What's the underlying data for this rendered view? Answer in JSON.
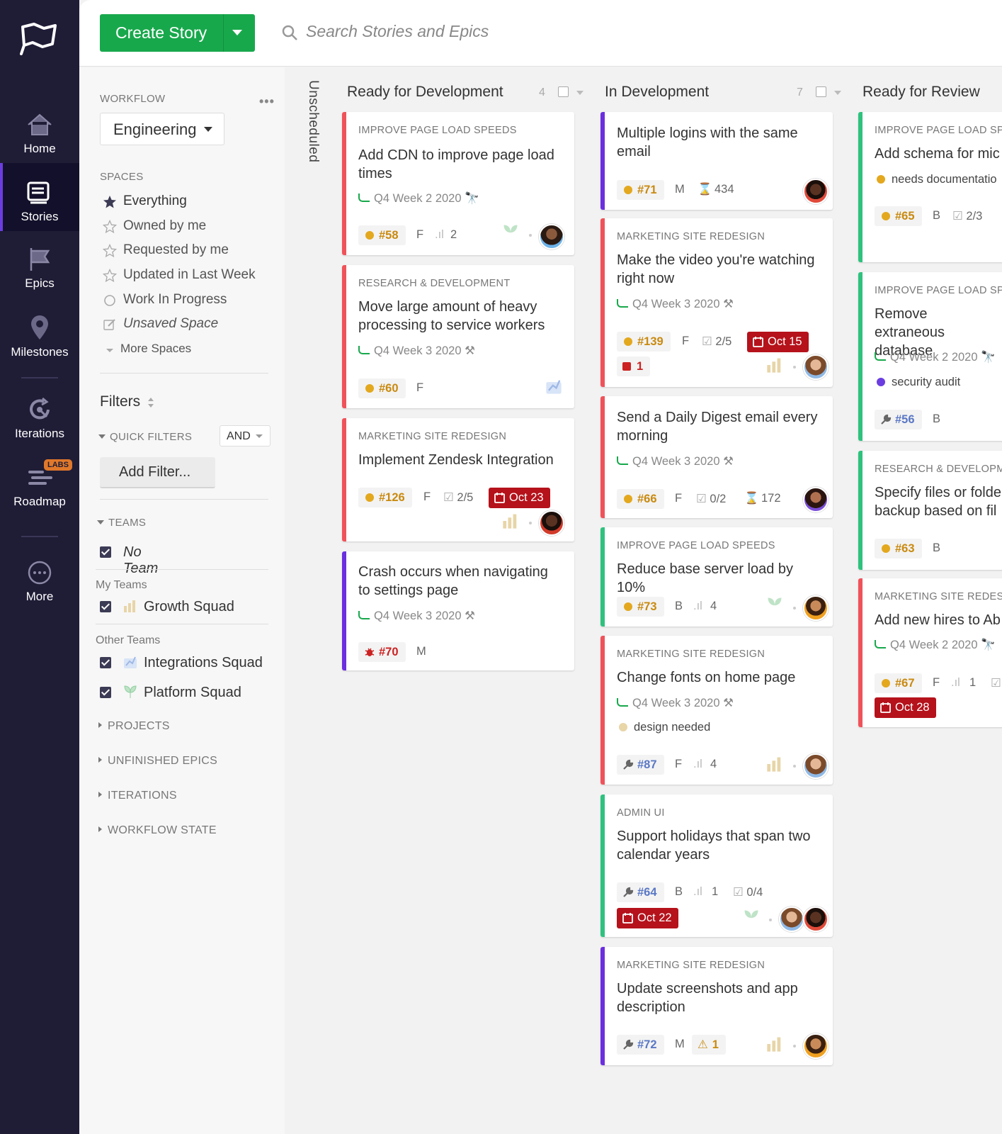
{
  "nav": {
    "items": [
      {
        "label": "Home",
        "icon": "home-icon"
      },
      {
        "label": "Stories",
        "icon": "stories-icon"
      },
      {
        "label": "Epics",
        "icon": "epics-icon"
      },
      {
        "label": "Milestones",
        "icon": "milestones-icon"
      },
      {
        "label": "Iterations",
        "icon": "iterations-icon"
      },
      {
        "label": "Roadmap",
        "icon": "roadmap-icon",
        "badge": "LABS"
      },
      {
        "label": "More",
        "icon": "more-icon"
      }
    ]
  },
  "toolbar": {
    "create_label": "Create Story",
    "search_placeholder": "Search Stories and Epics"
  },
  "sidebar": {
    "workflow_heading": "WORKFLOW",
    "workflow_value": "Engineering",
    "spaces_heading": "SPACES",
    "spaces": [
      {
        "label": "Everything",
        "icon": "star-filled-icon"
      },
      {
        "label": "Owned by me",
        "icon": "star-icon"
      },
      {
        "label": "Requested by me",
        "icon": "star-icon"
      },
      {
        "label": "Updated in Last Week",
        "icon": "star-icon"
      },
      {
        "label": "Work In Progress",
        "icon": "circle-icon"
      },
      {
        "label": "Unsaved Space",
        "icon": "edit-icon"
      },
      {
        "label": "More Spaces",
        "icon": "caret-down-icon"
      }
    ],
    "filters_title": "Filters",
    "quick_filters": "QUICK FILTERS",
    "and_value": "AND",
    "add_filter": "Add Filter...",
    "teams_heading": "TEAMS",
    "no_team": "No Team",
    "my_teams": "My Teams",
    "growth": "Growth Squad",
    "other_teams": "Other Teams",
    "integrations": "Integrations Squad",
    "platform": "Platform Squad",
    "projects": "PROJECTS",
    "unfinished_epics": "UNFINISHED EPICS",
    "iterations": "ITERATIONS",
    "workflow_state": "WORKFLOW STATE"
  },
  "board": {
    "unscheduled": "Unscheduled",
    "columns": [
      {
        "title": "Ready for Development",
        "count": "4"
      },
      {
        "title": "In Development",
        "count": "7"
      },
      {
        "title": "Ready for Review",
        "count": ""
      }
    ],
    "cards": {
      "c1": {
        "epic": "IMPROVE PAGE LOAD SPEEDS",
        "title": "Add CDN to improve page load times",
        "iteration": "Q4 Week 2 2020",
        "id": "#58",
        "type": "feature",
        "size": "F",
        "estimate": "2"
      },
      "c2": {
        "epic": "RESEARCH & DEVELOPMENT",
        "title": "Move large amount of heavy processing to service workers",
        "iteration": "Q4 Week 3 2020",
        "id": "#60",
        "type": "feature",
        "size": "F"
      },
      "c3": {
        "epic": "MARKETING SITE REDESIGN",
        "title": "Implement Zendesk Integration",
        "id": "#126",
        "type": "feature",
        "size": "F",
        "tasks": "2/5",
        "due": "Oct 23"
      },
      "c4": {
        "title": "Crash occurs when navigating to settings page",
        "iteration": "Q4 Week 3 2020",
        "id": "#70",
        "type": "bug",
        "size": "M"
      },
      "d1": {
        "title": "Multiple logins with the same email",
        "id": "#71",
        "type": "feature",
        "size": "M",
        "time": "434"
      },
      "d2": {
        "epic": "MARKETING SITE REDESIGN",
        "title": "Make the video you're watching right now",
        "iteration": "Q4 Week 3 2020",
        "id": "#139",
        "type": "feature",
        "size": "F",
        "tasks": "2/5",
        "due": "Oct 15",
        "blockers": "1"
      },
      "d3": {
        "title": "Send a Daily Digest email every morning",
        "iteration": "Q4 Week 3 2020",
        "id": "#66",
        "type": "feature",
        "size": "F",
        "tasks": "0/2",
        "time": "172"
      },
      "d4": {
        "epic": "IMPROVE PAGE LOAD SPEEDS",
        "title": "Reduce base server load by 10%",
        "id": "#73",
        "type": "feature",
        "size": "B",
        "estimate": "4"
      },
      "d5": {
        "epic": "MARKETING SITE REDESIGN",
        "title": "Change fonts on home page",
        "iteration": "Q4 Week 3 2020",
        "label": "design needed",
        "label_color": "#e8d5a8",
        "id": "#87",
        "type": "chore",
        "size": "F",
        "estimate": "4"
      },
      "d6": {
        "epic": "ADMIN UI",
        "title": "Support holidays that span two calendar years",
        "id": "#64",
        "type": "chore",
        "size": "B",
        "estimate": "1",
        "tasks": "0/4",
        "due": "Oct 22"
      },
      "d7": {
        "epic": "MARKETING SITE REDESIGN",
        "title": "Update screenshots and app description",
        "id": "#72",
        "type": "chore",
        "size": "M",
        "warnings": "1"
      },
      "r1": {
        "epic": "IMPROVE PAGE LOAD SPE",
        "title": "Add schema for mic",
        "label": "needs documentatio",
        "label_color": "#e3a81e",
        "id": "#65",
        "type": "feature",
        "size": "B",
        "tasks": "2/3"
      },
      "r2": {
        "epic": "IMPROVE PAGE LOAD SPE",
        "title": "Remove extraneous database",
        "iteration": "Q4 Week 2 2020",
        "label": "security audit",
        "label_color": "#6b3de0",
        "id": "#56",
        "type": "chore",
        "size": "B"
      },
      "r3": {
        "epic": "RESEARCH & DEVELOPME",
        "title": "Specify files or folde backup based on fil",
        "id": "#63",
        "type": "feature",
        "size": "B"
      },
      "r4": {
        "epic": "MARKETING SITE REDESIG",
        "title": "Add new hires to Ab",
        "iteration": "Q4 Week 2 2020",
        "id": "#67",
        "type": "feature",
        "size": "F",
        "estimate": "1",
        "due": "Oct 28"
      }
    }
  },
  "colors": {
    "feature": "#c98a10",
    "bug": "#c22",
    "chore": "#5a78c5",
    "accent": "#18a84c",
    "nav_bg": "#1f1c36",
    "red_bar": "#f0525a",
    "purple_bar": "#6b2ee0",
    "green_bar": "#2ec27e"
  }
}
